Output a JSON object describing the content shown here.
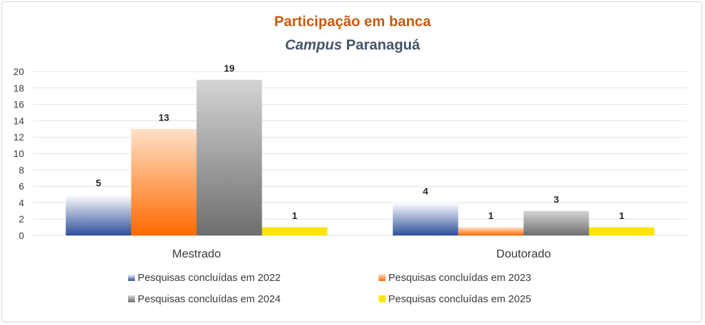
{
  "chart_data": {
    "type": "bar",
    "title": "Participação em banca",
    "subtitle_italic": "Campus",
    "subtitle_rest": " Paranaguá",
    "categories": [
      "Mestrado",
      "Doutorado"
    ],
    "ylim": [
      0,
      20
    ],
    "yticks": [
      0,
      2,
      4,
      6,
      8,
      10,
      12,
      14,
      16,
      18,
      20
    ],
    "grid": true,
    "legend_position": "bottom",
    "series": [
      {
        "name": "Pesquisas concluídas em 2022",
        "values": [
          5,
          4
        ],
        "color": "#2f4f9a",
        "color_light": "#ffffff"
      },
      {
        "name": "Pesquisas concluídas em 2023",
        "values": [
          13,
          1
        ],
        "color": "#ff6a00",
        "color_light": "#ffe0c8"
      },
      {
        "name": "Pesquisas concluídas em 2024",
        "values": [
          19,
          3
        ],
        "color": "#6e6e6e",
        "color_light": "#d4d4d4"
      },
      {
        "name": "Pesquisas concluídas em 2025",
        "values": [
          1,
          1
        ],
        "color": "#ffe400",
        "color_light": "#ffe400"
      }
    ]
  }
}
